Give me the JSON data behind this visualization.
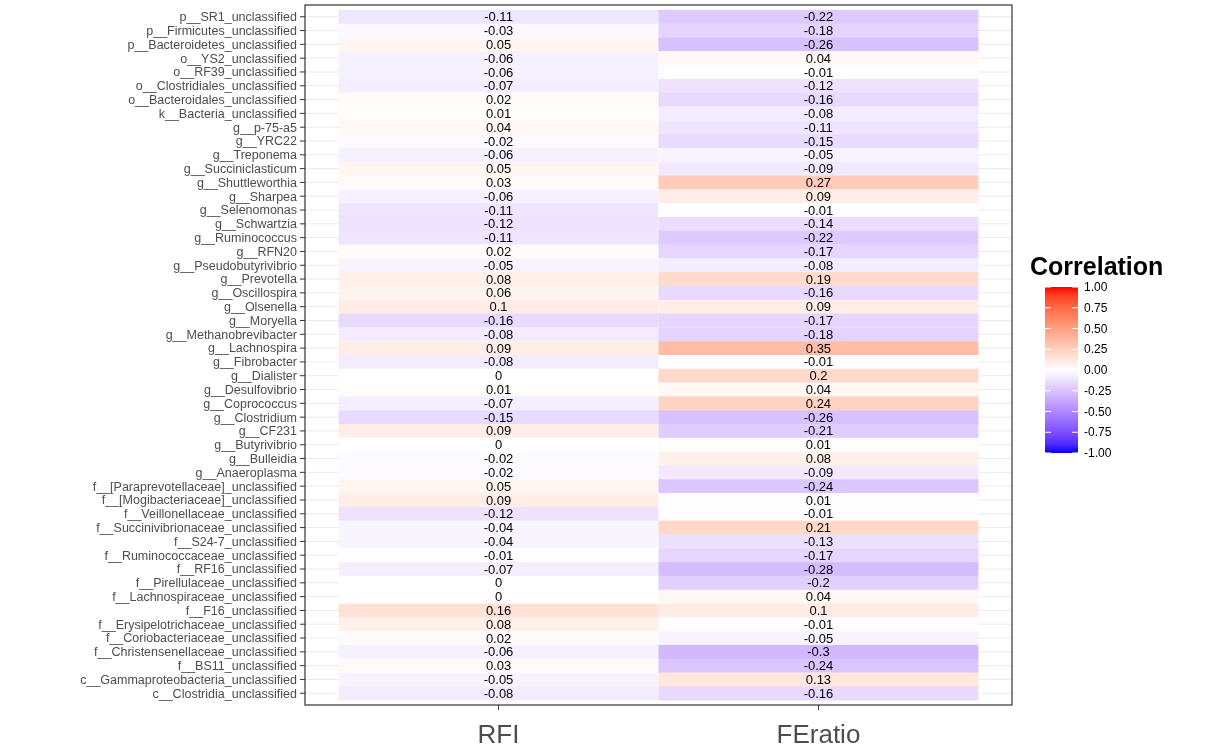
{
  "chart_data": {
    "type": "heatmap",
    "clabel": "Correlation",
    "categories": [
      "RFI",
      "FEratio"
    ],
    "y_categories": [
      "p__SR1_unclassified",
      "p__Firmicutes_unclassified",
      "p__Bacteroidetes_unclassified",
      "o__YS2_unclassified",
      "o__RF39_unclassified",
      "o__Clostridiales_unclassified",
      "o__Bacteroidales_unclassified",
      "k__Bacteria_unclassified",
      "g__p-75-a5",
      "g__YRC22",
      "g__Treponema",
      "g__Succiniclasticum",
      "g__Shuttleworthia",
      "g__Sharpea",
      "g__Selenomonas",
      "g__Schwartzia",
      "g__Ruminococcus",
      "g__RFN20",
      "g__Pseudobutyrivibrio",
      "g__Prevotella",
      "g__Oscillospira",
      "g__Olsenella",
      "g__Moryella",
      "g__Methanobrevibacter",
      "g__Lachnospira",
      "g__Fibrobacter",
      "g__Dialister",
      "g__Desulfovibrio",
      "g__Coprococcus",
      "g__Clostridium",
      "g__CF231",
      "g__Butyrivibrio",
      "g__Bulleidia",
      "g__Anaeroplasma",
      "f__[Paraprevotellaceae]_unclassified",
      "f__[Mogibacteriaceae]_unclassified",
      "f__Veillonellaceae_unclassified",
      "f__Succinivibrionaceae_unclassified",
      "f__S24-7_unclassified",
      "f__Ruminococcaceae_unclassified",
      "f__RF16_unclassified",
      "f__Pirellulaceae_unclassified",
      "f__Lachnospiraceae_unclassified",
      "f__F16_unclassified",
      "f__Erysipelotrichaceae_unclassified",
      "f__Coriobacteriaceae_unclassified",
      "f__Christensenellaceae_unclassified",
      "f__BS11_unclassified",
      "c__Gammaproteobacteria_unclassified",
      "c__Clostridia_unclassified"
    ],
    "cells": [
      [
        -0.11,
        -0.22
      ],
      [
        -0.03,
        -0.18
      ],
      [
        0.05,
        -0.26
      ],
      [
        -0.06,
        0.04
      ],
      [
        -0.06,
        -0.01
      ],
      [
        -0.07,
        -0.12
      ],
      [
        0.02,
        -0.16
      ],
      [
        0.01,
        -0.08
      ],
      [
        0.04,
        -0.11
      ],
      [
        -0.02,
        -0.15
      ],
      [
        -0.06,
        -0.05
      ],
      [
        0.05,
        -0.09
      ],
      [
        0.03,
        0.27
      ],
      [
        -0.06,
        0.09
      ],
      [
        -0.11,
        -0.01
      ],
      [
        -0.12,
        -0.14
      ],
      [
        -0.11,
        -0.22
      ],
      [
        0.02,
        -0.17
      ],
      [
        -0.05,
        -0.08
      ],
      [
        0.08,
        0.19
      ],
      [
        0.06,
        -0.16
      ],
      [
        0.1,
        0.09
      ],
      [
        -0.16,
        -0.17
      ],
      [
        -0.08,
        -0.18
      ],
      [
        0.09,
        0.35
      ],
      [
        -0.08,
        -0.01
      ],
      [
        0,
        0.2
      ],
      [
        0.01,
        0.04
      ],
      [
        -0.07,
        0.24
      ],
      [
        -0.15,
        -0.26
      ],
      [
        0.09,
        -0.21
      ],
      [
        0,
        0.01
      ],
      [
        -0.02,
        0.08
      ],
      [
        -0.02,
        -0.09
      ],
      [
        0.05,
        -0.24
      ],
      [
        0.09,
        0.01
      ],
      [
        -0.12,
        -0.01
      ],
      [
        -0.04,
        0.21
      ],
      [
        -0.04,
        -0.13
      ],
      [
        -0.01,
        -0.17
      ],
      [
        -0.07,
        -0.28
      ],
      [
        0,
        -0.2
      ],
      [
        0,
        0.04
      ],
      [
        0.16,
        0.1
      ],
      [
        0.08,
        -0.01
      ],
      [
        0.02,
        -0.05
      ],
      [
        -0.06,
        -0.3
      ],
      [
        0.03,
        -0.24
      ],
      [
        -0.05,
        0.13
      ],
      [
        -0.08,
        -0.16
      ]
    ],
    "clim": [
      -1,
      1
    ],
    "cticks": [
      {
        "value": 1,
        "label": "1.00"
      },
      {
        "value": 0.75,
        "label": "0.75"
      },
      {
        "value": 0.5,
        "label": "0.50"
      },
      {
        "value": 0.25,
        "label": "0.25"
      },
      {
        "value": 0,
        "label": "0.00"
      },
      {
        "value": -0.25,
        "label": "-0.25"
      },
      {
        "value": -0.5,
        "label": "-0.50"
      },
      {
        "value": -0.75,
        "label": "-0.75"
      },
      {
        "value": -1,
        "label": "-1.00"
      }
    ],
    "data_labels": true,
    "grid": "y"
  }
}
